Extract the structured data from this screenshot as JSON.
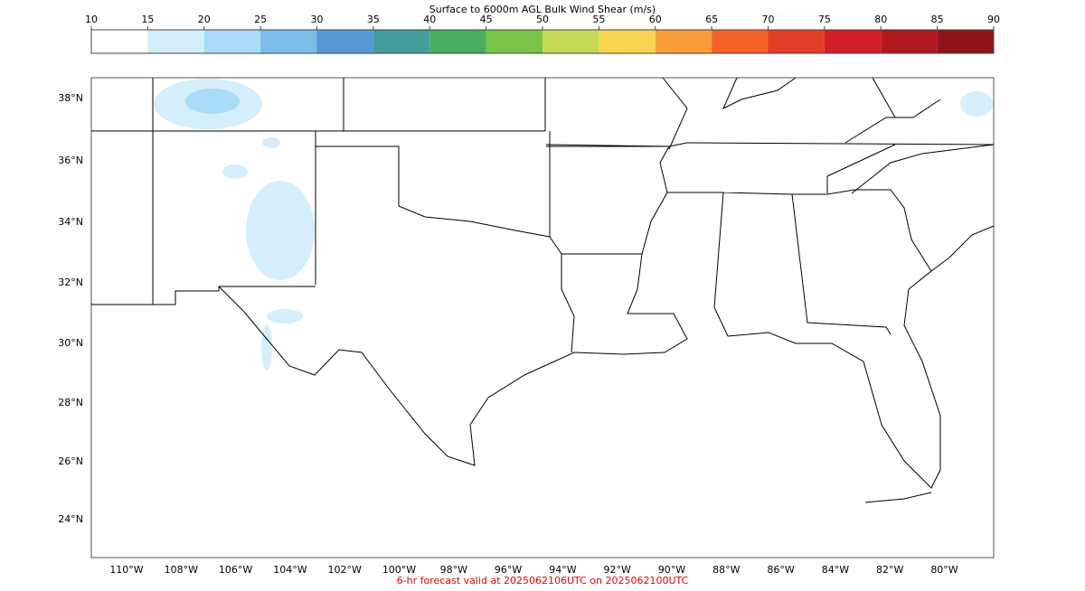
{
  "colorbar": {
    "title": "Surface to 6000m AGL Bulk Wind Shear (m/s)",
    "ticks": [
      10,
      15,
      20,
      25,
      30,
      35,
      40,
      45,
      50,
      55,
      60,
      65,
      70,
      75,
      80,
      85,
      90
    ],
    "colors": [
      "#ffffff",
      "#d4eefb",
      "#a8dcf7",
      "#7bbde8",
      "#5499d4",
      "#459d9c",
      "#47ad5f",
      "#78c348",
      "#c4d953",
      "#f9d452",
      "#f89c3a",
      "#f26228",
      "#e23d27",
      "#d11f29",
      "#b0191e",
      "#8e1419"
    ]
  },
  "map": {
    "lat_labels": [
      "38°N",
      "36°N",
      "34°N",
      "32°N",
      "30°N",
      "28°N",
      "26°N",
      "24°N"
    ],
    "lon_labels": [
      "110°W",
      "108°W",
      "106°W",
      "104°W",
      "102°W",
      "100°W",
      "98°W",
      "96°W",
      "94°W",
      "92°W",
      "90°W",
      "88°W",
      "86°W",
      "84°W",
      "82°W",
      "80°W"
    ]
  },
  "footer": "6-hr forecast valid at 2025062106UTC on 2025062100UTC"
}
